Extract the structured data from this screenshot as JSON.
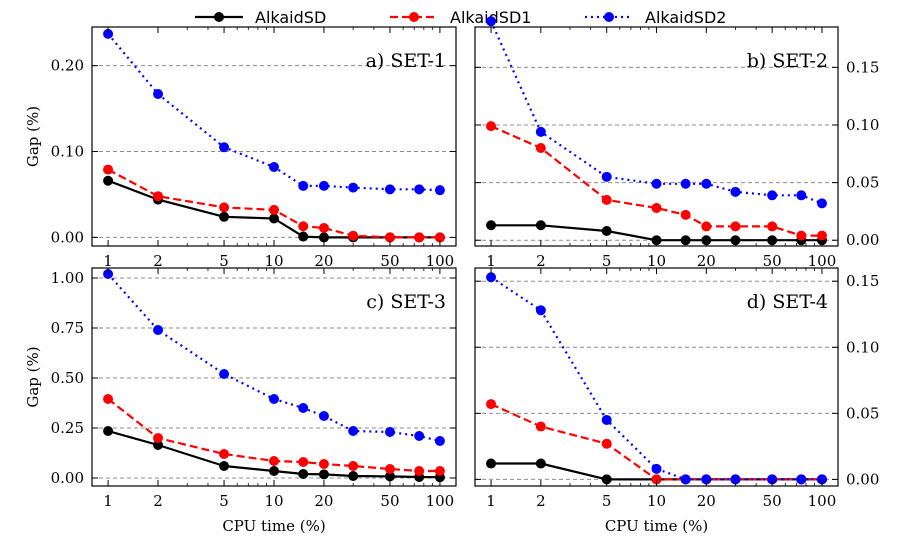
{
  "chart_data": {
    "type": "line",
    "legend": {
      "placement": "top-center",
      "entries": [
        {
          "label": "AlkaidSD",
          "color": "#000000",
          "dash": "solid"
        },
        {
          "label": "AlkaidSD1",
          "color": "#ff0000",
          "dash": "dashed"
        },
        {
          "label": "AlkaidSD2",
          "color": "#0000ff",
          "dash": "dotted"
        }
      ]
    },
    "x": [
      1,
      2,
      5,
      10,
      15,
      20,
      30,
      50,
      75,
      100
    ],
    "x_ticks": [
      1,
      2,
      5,
      10,
      20,
      50,
      100
    ],
    "x_tick_labels": [
      "1",
      "2",
      "5",
      "10",
      "20",
      "50",
      "100"
    ],
    "x_scale": "log",
    "xlim": [
      0.8,
      125
    ],
    "grid": "horizontal dashed",
    "panels": [
      {
        "title": "a) SET-1",
        "xlabel": "",
        "ylabel": "Gap (%)",
        "y_axis_side": "left",
        "ylim": [
          -0.01,
          0.245
        ],
        "y_ticks": [
          0,
          0.1,
          0.2
        ],
        "y_tick_labels": [
          "0.00",
          "0.10",
          "0.20"
        ],
        "series": [
          {
            "name": "AlkaidSD",
            "values": [
              0.066,
              0.044,
              0.024,
              0.022,
              0.001,
              0.0,
              0.0,
              0.0,
              0.0,
              0.0
            ]
          },
          {
            "name": "AlkaidSD1",
            "values": [
              0.079,
              0.048,
              0.035,
              0.032,
              0.013,
              0.011,
              0.002,
              0.0,
              0.0,
              0.0
            ]
          },
          {
            "name": "AlkaidSD2",
            "values": [
              0.237,
              0.167,
              0.105,
              0.082,
              0.06,
              0.06,
              0.058,
              0.056,
              0.056,
              0.055
            ]
          }
        ]
      },
      {
        "title": "b) SET-2",
        "xlabel": "",
        "ylabel": "",
        "y_axis_side": "right",
        "ylim": [
          -0.005,
          0.185
        ],
        "y_ticks": [
          0,
          0.05,
          0.1,
          0.15
        ],
        "y_tick_labels": [
          "0.00",
          "0.05",
          "0.10",
          "0.15"
        ],
        "series": [
          {
            "name": "AlkaidSD",
            "values": [
              0.013,
              0.013,
              0.008,
              0.0,
              0.0,
              0.0,
              0.0,
              0.0,
              0.0,
              0.0
            ]
          },
          {
            "name": "AlkaidSD1",
            "values": [
              0.099,
              0.08,
              0.035,
              0.028,
              0.022,
              0.012,
              0.012,
              0.012,
              0.004,
              0.004
            ]
          },
          {
            "name": "AlkaidSD2",
            "values": [
              0.19,
              0.094,
              0.055,
              0.049,
              0.049,
              0.049,
              0.042,
              0.039,
              0.039,
              0.032
            ]
          }
        ]
      },
      {
        "title": "c) SET-3",
        "xlabel": "CPU time (%)",
        "ylabel": "Gap (%)",
        "y_axis_side": "left",
        "ylim": [
          -0.04,
          1.05
        ],
        "y_ticks": [
          0,
          0.25,
          0.5,
          0.75,
          1.0
        ],
        "y_tick_labels": [
          "0.00",
          "0.25",
          "0.50",
          "0.75",
          "1.00"
        ],
        "series": [
          {
            "name": "AlkaidSD",
            "values": [
              0.235,
              0.165,
              0.06,
              0.035,
              0.02,
              0.018,
              0.01,
              0.008,
              0.005,
              0.004
            ]
          },
          {
            "name": "AlkaidSD1",
            "values": [
              0.395,
              0.2,
              0.12,
              0.085,
              0.08,
              0.07,
              0.06,
              0.045,
              0.035,
              0.035
            ]
          },
          {
            "name": "AlkaidSD2",
            "values": [
              1.02,
              0.74,
              0.52,
              0.395,
              0.35,
              0.31,
              0.235,
              0.23,
              0.21,
              0.185
            ]
          }
        ]
      },
      {
        "title": "d) SET-4",
        "xlabel": "CPU time (%)",
        "ylabel": "",
        "y_axis_side": "right",
        "ylim": [
          -0.005,
          0.16
        ],
        "y_ticks": [
          0,
          0.05,
          0.1,
          0.15
        ],
        "y_tick_labels": [
          "0.00",
          "0.05",
          "0.10",
          "0.15"
        ],
        "series": [
          {
            "name": "AlkaidSD",
            "values": [
              0.012,
              0.012,
              0.0,
              0.0,
              0.0,
              0.0,
              0.0,
              0.0,
              0.0,
              0.0
            ]
          },
          {
            "name": "AlkaidSD1",
            "values": [
              0.057,
              0.04,
              0.027,
              0.0,
              0.0,
              0.0,
              0.0,
              0.0,
              0.0,
              0.0
            ]
          },
          {
            "name": "AlkaidSD2",
            "values": [
              0.153,
              0.128,
              0.045,
              0.008,
              0.0,
              0.0,
              0.0,
              0.0,
              0.0,
              0.0
            ]
          }
        ]
      }
    ]
  }
}
